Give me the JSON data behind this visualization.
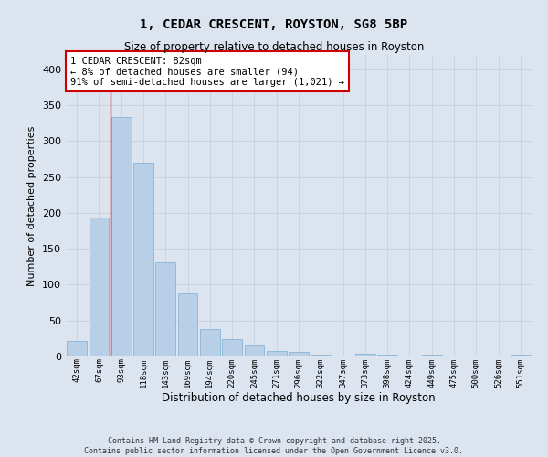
{
  "title": "1, CEDAR CRESCENT, ROYSTON, SG8 5BP",
  "subtitle": "Size of property relative to detached houses in Royston",
  "xlabel": "Distribution of detached houses by size in Royston",
  "ylabel": "Number of detached properties",
  "footer_line1": "Contains HM Land Registry data © Crown copyright and database right 2025.",
  "footer_line2": "Contains public sector information licensed under the Open Government Licence v3.0.",
  "bin_labels": [
    "42sqm",
    "67sqm",
    "93sqm",
    "118sqm",
    "143sqm",
    "169sqm",
    "194sqm",
    "220sqm",
    "245sqm",
    "271sqm",
    "296sqm",
    "322sqm",
    "347sqm",
    "373sqm",
    "398sqm",
    "424sqm",
    "449sqm",
    "475sqm",
    "500sqm",
    "526sqm",
    "551sqm"
  ],
  "bar_values": [
    22,
    194,
    333,
    270,
    131,
    88,
    38,
    24,
    15,
    8,
    7,
    3,
    0,
    4,
    3,
    0,
    3,
    0,
    0,
    0,
    2
  ],
  "bar_color": "#b8cfe8",
  "bar_edgecolor": "#7aafd4",
  "grid_color": "#c8d0dc",
  "background_color": "#dce4f0",
  "property_line_x": 1.5,
  "property_line_color": "#cc0000",
  "annotation_text": "1 CEDAR CRESCENT: 82sqm\n← 8% of detached houses are smaller (94)\n91% of semi-detached houses are larger (1,021) →",
  "annotation_box_color": "#ffffff",
  "annotation_box_edgecolor": "#cc0000",
  "ylim": [
    0,
    420
  ],
  "yticks": [
    0,
    50,
    100,
    150,
    200,
    250,
    300,
    350,
    400
  ]
}
